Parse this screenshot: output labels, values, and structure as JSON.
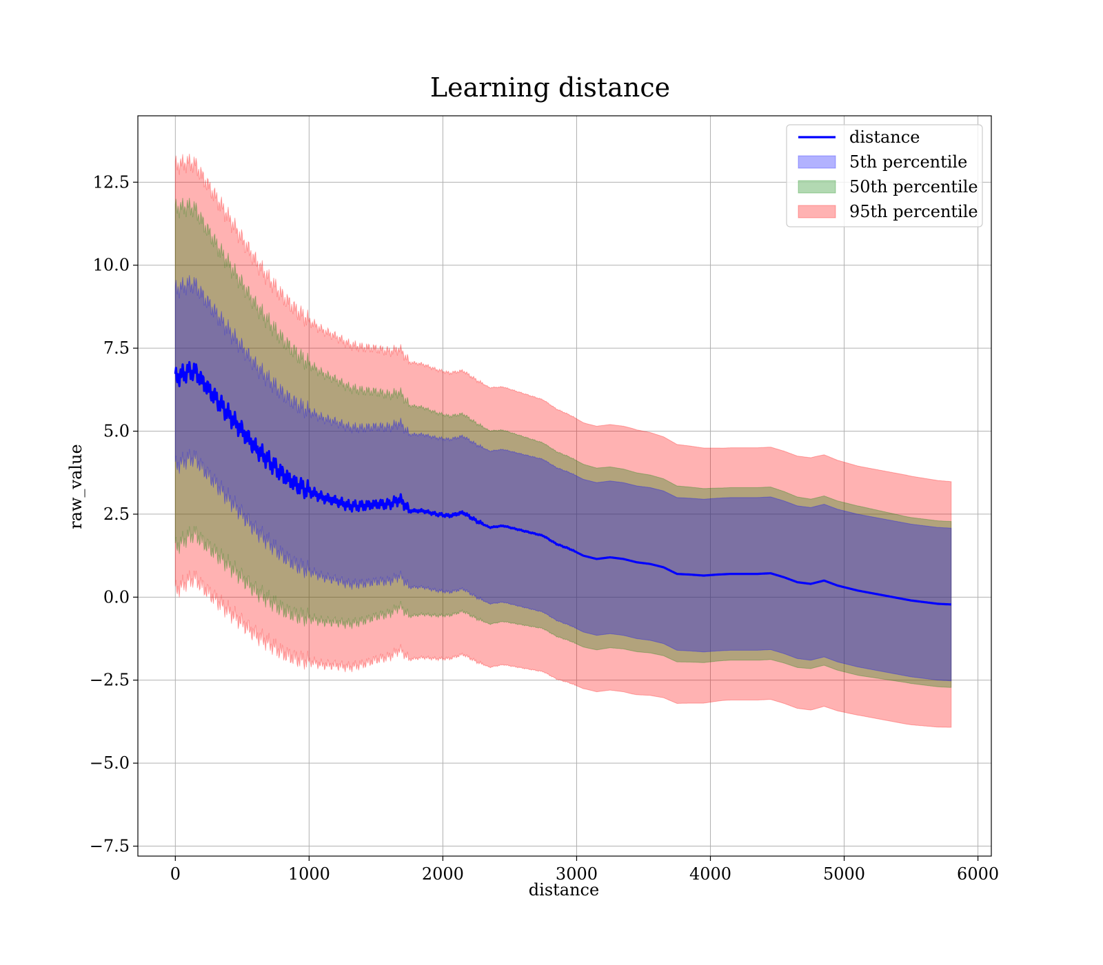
{
  "chart_data": {
    "type": "line",
    "title": "Learning distance",
    "xlabel": "distance",
    "ylabel": "raw_value",
    "xlim": [
      -280,
      6100
    ],
    "ylim": [
      -7.8,
      14.5
    ],
    "grid": true,
    "legend_position": "top-right",
    "x_ticks": [
      0,
      1000,
      2000,
      3000,
      4000,
      5000,
      6000
    ],
    "x_tick_labels": [
      "0",
      "1000",
      "2000",
      "3000",
      "4000",
      "5000",
      "6000"
    ],
    "y_ticks": [
      -7.5,
      -5.0,
      -2.5,
      0.0,
      2.5,
      5.0,
      7.5,
      10.0,
      12.5
    ],
    "y_tick_labels": [
      "−7.5",
      "−5.0",
      "−2.5",
      "0.0",
      "2.5",
      "5.0",
      "7.5",
      "10.0",
      "12.5"
    ],
    "colors": {
      "line": "#0000ff",
      "band_5th": "#0000ff",
      "band_50th": "#008000",
      "band_95th": "#ff0000",
      "grid": "#b0b0b0"
    },
    "legend": [
      {
        "label": "distance",
        "kind": "line",
        "color": "#0000ff"
      },
      {
        "label": "5th percentile",
        "kind": "patch",
        "color": "#0000ff"
      },
      {
        "label": "50th percentile",
        "kind": "patch",
        "color": "#008000"
      },
      {
        "label": "95th percentile",
        "kind": "patch",
        "color": "#ff0000"
      }
    ],
    "bands": [
      {
        "name": "95th percentile",
        "color": "#ff0000",
        "half_width": [
          6.4,
          6.0,
          5.5,
          5.1,
          4.8,
          4.5,
          4.3,
          4.2,
          4.1,
          4.0,
          4.0,
          3.9,
          3.8,
          3.8,
          3.8,
          3.75,
          3.75,
          3.7
        ]
      },
      {
        "name": "50th percentile",
        "color": "#008000",
        "half_width": [
          5.1,
          4.6,
          4.2,
          3.8,
          3.5,
          3.2,
          3.0,
          2.9,
          2.8,
          2.75,
          2.7,
          2.65,
          2.6,
          2.6,
          2.55,
          2.55,
          2.5,
          2.5
        ]
      },
      {
        "name": "5th percentile",
        "color": "#0000ff",
        "half_width": [
          2.65,
          2.55,
          2.45,
          2.4,
          2.35,
          2.3,
          2.3,
          2.3,
          2.3,
          2.3,
          2.3,
          2.3,
          2.3,
          2.3,
          2.3,
          2.3,
          2.3,
          2.3
        ]
      }
    ],
    "series": [
      {
        "name": "distance",
        "x": [
          0,
          50,
          100,
          150,
          200,
          300,
          400,
          500,
          600,
          700,
          800,
          900,
          1000,
          1100,
          1200,
          1300,
          1400,
          1500,
          1600,
          1680,
          1750,
          1850,
          1950,
          2050,
          2150,
          2250,
          2350,
          2450,
          2550,
          2650,
          2750,
          2850,
          2950,
          3050,
          3150,
          3250,
          3350,
          3450,
          3550,
          3650,
          3750,
          3850,
          3950,
          4050,
          4150,
          4250,
          4350,
          4450,
          4550,
          4650,
          4750,
          4850,
          4950,
          5100,
          5300,
          5500,
          5700,
          5800
        ],
        "y": [
          6.6,
          6.7,
          6.8,
          6.8,
          6.5,
          6.0,
          5.5,
          5.0,
          4.5,
          4.1,
          3.7,
          3.4,
          3.2,
          3.0,
          2.9,
          2.75,
          2.75,
          2.8,
          2.8,
          2.95,
          2.6,
          2.6,
          2.5,
          2.45,
          2.55,
          2.3,
          2.1,
          2.15,
          2.05,
          1.95,
          1.85,
          1.6,
          1.45,
          1.25,
          1.15,
          1.2,
          1.15,
          1.05,
          1.0,
          0.9,
          0.7,
          0.68,
          0.65,
          0.68,
          0.7,
          0.7,
          0.7,
          0.72,
          0.6,
          0.45,
          0.4,
          0.5,
          0.35,
          0.2,
          0.05,
          -0.1,
          -0.2,
          -0.22
        ]
      }
    ]
  }
}
